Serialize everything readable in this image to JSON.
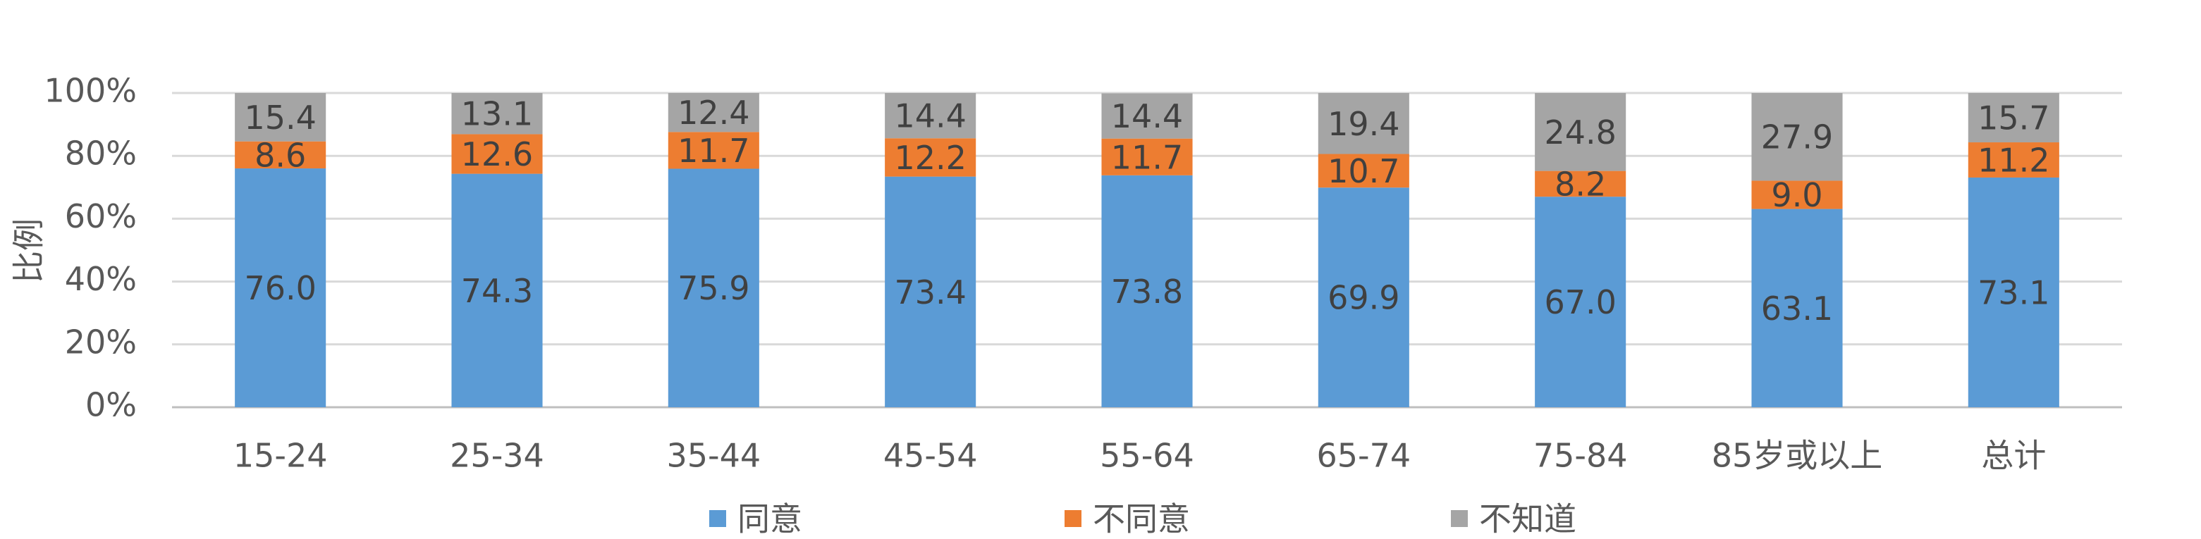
{
  "chart_data": {
    "type": "stacked-bar",
    "y_label": "比例",
    "categories": [
      "15-24",
      "25-34",
      "35-44",
      "45-54",
      "55-64",
      "65-74",
      "75-84",
      "85岁或以上",
      "总计"
    ],
    "series": [
      {
        "name": "同意",
        "color": "#5b9bd5",
        "values": [
          76.0,
          74.3,
          75.9,
          73.4,
          73.8,
          69.9,
          67.0,
          63.1,
          73.1
        ],
        "value_labels": [
          "76.0",
          "74.3",
          "75.9",
          "73.4",
          "73.8",
          "69.9",
          "67.0",
          "63.1",
          "73.1"
        ]
      },
      {
        "name": "不同意",
        "color": "#ed7d31",
        "values": [
          8.6,
          12.6,
          11.7,
          12.2,
          11.7,
          10.7,
          8.2,
          9.0,
          11.2
        ],
        "value_labels": [
          "8.6",
          "12.6",
          "11.7",
          "12.2",
          "11.7",
          "10.7",
          "8.2",
          "9.0",
          "11.2"
        ]
      },
      {
        "name": "不知道",
        "color": "#a5a5a5",
        "values": [
          15.4,
          13.1,
          12.4,
          14.4,
          14.4,
          19.4,
          24.8,
          27.9,
          15.7
        ],
        "value_labels": [
          "15.4",
          "13.1",
          "12.4",
          "14.4",
          "14.4",
          "19.4",
          "24.8",
          "27.9",
          "15.7"
        ]
      }
    ],
    "ylim": [
      0,
      100
    ],
    "yticks": [
      {
        "value": 0,
        "label": "0%"
      },
      {
        "value": 20,
        "label": "20%"
      },
      {
        "value": 40,
        "label": "40%"
      },
      {
        "value": 60,
        "label": "60%"
      },
      {
        "value": 80,
        "label": "80%"
      },
      {
        "value": 100,
        "label": "100%"
      }
    ],
    "grid": true,
    "legend": "bottom"
  }
}
